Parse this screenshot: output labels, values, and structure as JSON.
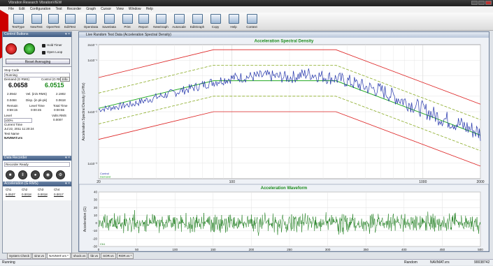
{
  "window": {
    "title": "Vibration Research VibrationVIEW"
  },
  "menu": [
    "File",
    "Edit",
    "Configuration",
    "Test",
    "Recorder",
    "Graph",
    "Cursor",
    "View",
    "Window",
    "Help"
  ],
  "toolbar": [
    {
      "label": "TestType",
      "icon": "test-type-icon"
    },
    {
      "label": "NewTest",
      "icon": "new-test-icon"
    },
    {
      "label": "OpenTest",
      "icon": "open-test-icon"
    },
    {
      "label": "EditTest",
      "icon": "edit-test-icon"
    },
    {
      "label": "OpenData",
      "icon": "open-data-icon"
    },
    {
      "label": "SaveData",
      "icon": "save-data-icon"
    },
    {
      "label": "Print",
      "icon": "print-icon"
    },
    {
      "label": "Report",
      "icon": "report-icon"
    },
    {
      "label": "NewGraph",
      "icon": "new-graph-icon"
    },
    {
      "label": "Autoscale",
      "icon": "autoscale-icon"
    },
    {
      "label": "EditGraph",
      "icon": "edit-graph-icon"
    },
    {
      "label": "Copy",
      "icon": "copy-icon"
    },
    {
      "label": "Help",
      "icon": "help-icon"
    },
    {
      "label": "Context",
      "icon": "context-help-icon"
    }
  ],
  "control_buttons": {
    "title": "Control Buttons",
    "hold_timer": "Hold Timer",
    "open_loop": "Open Loop",
    "reset_averaging": "Reset Averaging"
  },
  "status": {
    "stop_code_label": "Stop Code",
    "stop_code": "Running",
    "demand_label": "Demand (G RMS)",
    "control_label": "Control (G RMS)",
    "info_button": "Info",
    "demand": "6.0658",
    "control": "6.0515",
    "left1": "2.0942",
    "mid1_label": "Vel. (in/s RMS)",
    "right1": "2.1902",
    "left2": "0.0484",
    "mid2_label": "Disp. (in pk-pk)",
    "right2": "0.0618",
    "remain_label": "Remain",
    "level_time_label": "Level Time",
    "total_time_label": "Total Time",
    "remain": "0:59:15",
    "level_time": "0:00:45",
    "total_time": "0:00:55",
    "level_label": "Level",
    "volts_label": "Volts RMS",
    "level": "100%",
    "volts": "0.0007",
    "current_time_label": "Current Time",
    "current_time": "Jul 22, 2011 11:20:24",
    "test_name_label": "Test Name",
    "test_name": "NAVMAT.vrs"
  },
  "recorder": {
    "title": "Data Recorder",
    "state": "Recorder Ready"
  },
  "accel_panel": {
    "title": "Acceleration (G RMS)",
    "headers": [
      "Ch1",
      "Ch2",
      "Ch3",
      "Ch4"
    ],
    "values": [
      "6.0537",
      "0.0018",
      "0.0018",
      "0.0017"
    ]
  },
  "graph_window": {
    "title": "Live Random Test Data (Acceleration Spectral Density)"
  },
  "chart_data": [
    {
      "type": "line",
      "title": "Acceleration Spectral Density",
      "xlabel": "Frequency (Hz)",
      "ylabel": "Acceleration Spectral Density (G²/Hz)",
      "xscale": "log",
      "yscale": "log",
      "xlim": [
        20,
        2000
      ],
      "ylim": [
        0.0005,
        0.2
      ],
      "x_ticks": [
        "20",
        "100",
        "1000",
        "2000"
      ],
      "y_ticks": [
        "2x10⁻¹",
        "1x10⁻¹",
        "1x10⁻²",
        "1x10⁻³"
      ],
      "legend": [
        "Control",
        "Demand"
      ],
      "series": [
        {
          "name": "Demand",
          "color": "#22aa22",
          "x": [
            20,
            80,
            350,
            2000
          ],
          "y": [
            0.0116,
            0.04,
            0.04,
            0.0035
          ]
        },
        {
          "name": "Control",
          "color": "#2233aa",
          "x": [
            20,
            30,
            40,
            60,
            80,
            100,
            150,
            200,
            250,
            300,
            350,
            400,
            500,
            600,
            800,
            1000,
            1200,
            1500,
            1800,
            2000
          ],
          "y": [
            0.011,
            0.014,
            0.019,
            0.028,
            0.038,
            0.045,
            0.05,
            0.046,
            0.055,
            0.048,
            0.044,
            0.04,
            0.03,
            0.026,
            0.016,
            0.011,
            0.008,
            0.006,
            0.0045,
            0.0038
          ]
        },
        {
          "name": "abort-high",
          "color": "#dd2222",
          "x": [
            20,
            80,
            350,
            2000
          ],
          "y": [
            0.046,
            0.16,
            0.16,
            0.014
          ]
        },
        {
          "name": "abort-low",
          "color": "#dd2222",
          "x": [
            20,
            80,
            350,
            2000
          ],
          "y": [
            0.0029,
            0.01,
            0.01,
            0.00088
          ]
        },
        {
          "name": "alarm-high",
          "color": "#88aa22",
          "x": [
            20,
            80,
            350,
            2000
          ],
          "y": [
            0.023,
            0.08,
            0.08,
            0.007
          ]
        },
        {
          "name": "alarm-low",
          "color": "#88aa22",
          "x": [
            20,
            80,
            350,
            2000
          ],
          "y": [
            0.0058,
            0.02,
            0.02,
            0.00175
          ]
        }
      ],
      "grid": true
    },
    {
      "type": "line",
      "title": "Acceleration Waveform",
      "xlabel": "Time (ms)",
      "ylabel": "Acceleration (G)",
      "xlim": [
        0,
        500
      ],
      "ylim": [
        -30,
        40
      ],
      "x_ticks": [
        "0",
        "50",
        "100",
        "150",
        "200",
        "250",
        "300",
        "350",
        "400",
        "450",
        "500"
      ],
      "y_ticks": [
        "40",
        "30",
        "20",
        "10",
        "0",
        "-10",
        "-20",
        "-30"
      ],
      "legend": [
        "Ch1"
      ],
      "series": [
        {
          "name": "Ch1",
          "color": "#117711",
          "rms": 6.05
        }
      ],
      "grid": true
    }
  ],
  "tabs": [
    "System Check",
    "sine.vs",
    "NAVMAT.vrs *",
    "shock.vs",
    "fdr.vs",
    "SOR.vs",
    "ROR.vs *"
  ],
  "statusbar": {
    "left": "Running",
    "mode": "Random",
    "file": "NAVMAT.vrs",
    "code": "90038742"
  }
}
